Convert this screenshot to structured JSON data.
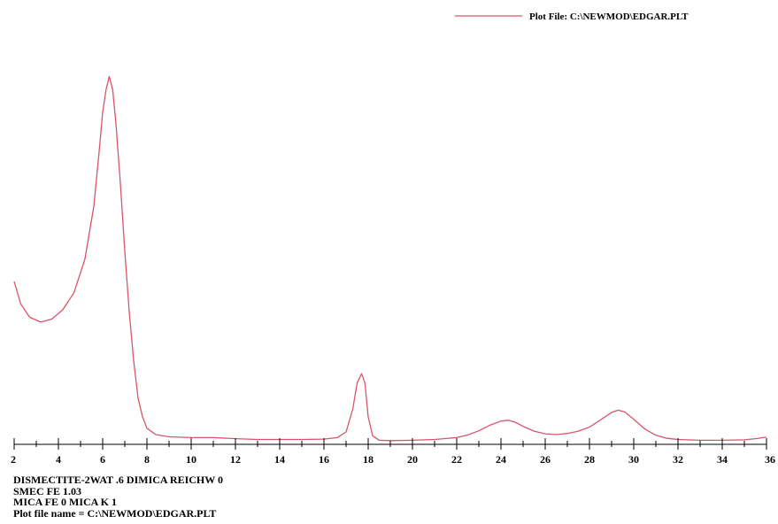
{
  "legend": {
    "label": "Plot File: C:\\NEWMOD\\EDGAR.PLT",
    "color": "#d9546b"
  },
  "notes": [
    "DISMECTITE-2WAT .6 DIMICA REICHW 0",
    "SMEC FE 1.03",
    "MICA FE 0 MICA K 1",
    "Plot file name = C:\\NEWMOD\\EDGAR.PLT"
  ],
  "chart_data": {
    "type": "line",
    "title": "",
    "xlabel": "",
    "ylabel": "",
    "xlim": [
      2,
      36
    ],
    "ylim": [
      0,
      100
    ],
    "grid": false,
    "legend_position": "top-right",
    "x_ticks": [
      2,
      4,
      6,
      8,
      10,
      12,
      14,
      16,
      18,
      20,
      22,
      24,
      26,
      28,
      30,
      32,
      34,
      36
    ],
    "series": [
      {
        "name": "Plot File: C:\\NEWMOD\\EDGAR.PLT",
        "color": "#d9546b",
        "points": [
          [
            2.0,
            44
          ],
          [
            2.3,
            38
          ],
          [
            2.7,
            34.5
          ],
          [
            3.2,
            33.2
          ],
          [
            3.7,
            34
          ],
          [
            4.2,
            36.5
          ],
          [
            4.7,
            41
          ],
          [
            5.2,
            50
          ],
          [
            5.6,
            64
          ],
          [
            5.85,
            79
          ],
          [
            6.0,
            89
          ],
          [
            6.15,
            95
          ],
          [
            6.3,
            98.5
          ],
          [
            6.45,
            95
          ],
          [
            6.6,
            86
          ],
          [
            6.8,
            70
          ],
          [
            7.0,
            52
          ],
          [
            7.2,
            36
          ],
          [
            7.4,
            23
          ],
          [
            7.6,
            13
          ],
          [
            7.8,
            8
          ],
          [
            8.0,
            5
          ],
          [
            8.4,
            3.3
          ],
          [
            9.0,
            2.7
          ],
          [
            10.0,
            2.5
          ],
          [
            11.0,
            2.5
          ],
          [
            12.0,
            2.2
          ],
          [
            13.0,
            2.0
          ],
          [
            14.0,
            2.0
          ],
          [
            15.0,
            2.0
          ],
          [
            16.0,
            2.1
          ],
          [
            16.6,
            2.5
          ],
          [
            17.0,
            4
          ],
          [
            17.3,
            10
          ],
          [
            17.5,
            17
          ],
          [
            17.7,
            19.5
          ],
          [
            17.85,
            17
          ],
          [
            18.0,
            8
          ],
          [
            18.2,
            3
          ],
          [
            18.5,
            1.8
          ],
          [
            19.0,
            1.7
          ],
          [
            20.0,
            1.8
          ],
          [
            21.0,
            2.0
          ],
          [
            22.0,
            2.5
          ],
          [
            22.5,
            3.2
          ],
          [
            23.0,
            4.3
          ],
          [
            23.5,
            5.8
          ],
          [
            24.0,
            6.9
          ],
          [
            24.3,
            7.1
          ],
          [
            24.6,
            6.7
          ],
          [
            25.0,
            5.5
          ],
          [
            25.5,
            4.2
          ],
          [
            26.0,
            3.5
          ],
          [
            26.5,
            3.3
          ],
          [
            27.0,
            3.6
          ],
          [
            27.5,
            4.2
          ],
          [
            28.0,
            5.3
          ],
          [
            28.5,
            7.2
          ],
          [
            29.0,
            9.2
          ],
          [
            29.3,
            9.8
          ],
          [
            29.6,
            9.3
          ],
          [
            30.0,
            7.4
          ],
          [
            30.5,
            4.8
          ],
          [
            31.0,
            3.1
          ],
          [
            31.5,
            2.3
          ],
          [
            32.0,
            2.0
          ],
          [
            33.0,
            1.8
          ],
          [
            34.0,
            1.8
          ],
          [
            35.0,
            1.9
          ],
          [
            35.5,
            2.2
          ],
          [
            36.0,
            2.6
          ]
        ]
      }
    ]
  }
}
